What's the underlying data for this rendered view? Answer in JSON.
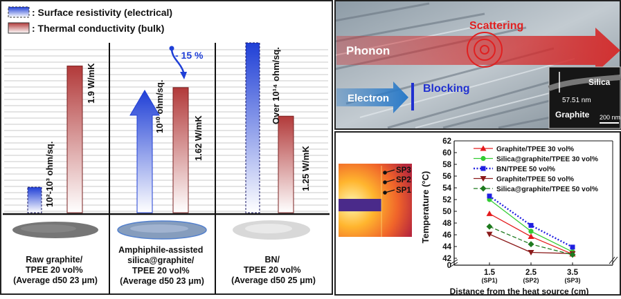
{
  "left_panel": {
    "legend": [
      {
        "label": ": Surface resistivity (electrical)",
        "swatch": "blue-gradient"
      },
      {
        "label": ": Thermal conductivity (bulk)",
        "swatch": "red-gradient"
      }
    ],
    "groups": [
      {
        "resistivity_label": "10²-10³ ohm/sq.",
        "resistivity_bar_value": 0.15,
        "conductivity_label": "1.9 W/mK",
        "conductivity_value": 1.9,
        "caption": [
          "Raw graphite/",
          "TPEE 20 vol%",
          "(Average d50 23 μm)"
        ]
      },
      {
        "resistivity_label": "10¹⁰ ohm/sq.",
        "resistivity_bar_value": 0.72,
        "conductivity_label": "1.62 W/mK",
        "conductivity_value": 1.62,
        "change_label": "- 15 %",
        "caption": [
          "Amphiphile-assisted",
          "silica@graphite/",
          "TPEE 20 vol%",
          "(Average d50 23 μm)"
        ]
      },
      {
        "resistivity_label": "Over 10¹⁴ ohm/sq.",
        "resistivity_bar_value": 1.0,
        "conductivity_label": "1.25 W/mK",
        "conductivity_value": 1.25,
        "caption": [
          "BN/",
          "TPEE 20 vol%",
          "(Average d50 25 μm)"
        ]
      }
    ],
    "colors": {
      "blue": "#1f3fd6",
      "red": "#b23a3a",
      "grid": "#c8c8c8"
    }
  },
  "top_right": {
    "labels": {
      "scattering": "Scattering",
      "phonon": "Phonon",
      "electron": "Electron",
      "blocking": "Blocking",
      "silica": "Silica",
      "thickness": "57.51 nm",
      "graphite": "Graphite",
      "scale": "200 nm"
    },
    "colors": {
      "scattering": "#e02020",
      "blocking": "#2030d0",
      "phonon_arrow": "#d42a2a",
      "electron_arrow": "#2a7ac8"
    }
  },
  "thermal_image": {
    "sp_labels": [
      "SP3",
      "SP2",
      "SP1"
    ]
  },
  "chart_data": {
    "type": "line",
    "ylabel": "Temperature (°C)",
    "xlabel": "Distance from the heat source (cm)",
    "x": [
      1.5,
      2.5,
      3.5
    ],
    "x_tick_labels": [
      "1.5",
      "2.5",
      "3.5"
    ],
    "x_tick_sublabels": [
      "(SP1)",
      "(SP2)",
      "(SP3)"
    ],
    "y_ticks": [
      42,
      44,
      46,
      48,
      50,
      52,
      54,
      56,
      58,
      60,
      62
    ],
    "y_zero_label": "0",
    "ylim": [
      42,
      62
    ],
    "legend_position": "top-right",
    "series": [
      {
        "name": "Graphite/TPEE 30 vol%",
        "values": [
          49.6,
          45.7,
          42.7
        ],
        "color": "#e41a1c",
        "marker": "triangle-up",
        "dash": "solid"
      },
      {
        "name": "Silica@graphite/TPEE 30 vol%",
        "values": [
          52.0,
          46.6,
          43.1
        ],
        "color": "#33cc33",
        "marker": "circle",
        "dash": "solid"
      },
      {
        "name": "BN/TPEE 50 vol%",
        "values": [
          52.6,
          47.6,
          43.9
        ],
        "color": "#1f1fe0",
        "marker": "square",
        "dash": "dotted"
      },
      {
        "name": "Graphite/TPEE 50 vol%",
        "values": [
          46.1,
          43.0,
          42.8
        ],
        "color": "#8b1a1a",
        "marker": "triangle-down",
        "dash": "solid"
      },
      {
        "name": "Silica@graphite/TPEE 50 vol%",
        "values": [
          47.4,
          44.4,
          42.6
        ],
        "color": "#1f7a1f",
        "marker": "diamond",
        "dash": "dashed"
      }
    ]
  }
}
